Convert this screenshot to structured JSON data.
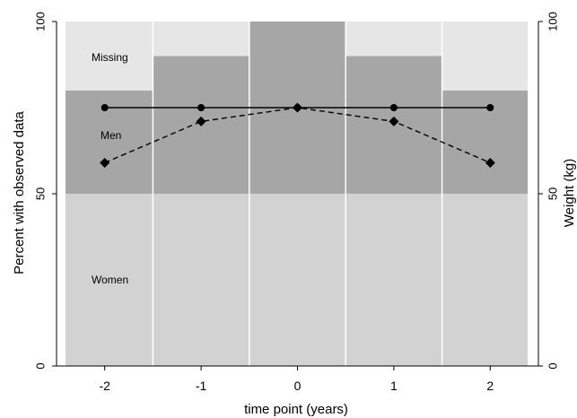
{
  "chart_data": {
    "type": "bar",
    "xlabel": "time point (years)",
    "ylabel_left": "Percent with observed data",
    "ylabel_right": "Weight (kg)",
    "x": [
      -2,
      -1,
      0,
      1,
      2
    ],
    "x_tick_labels": [
      "-2",
      "-1",
      "0",
      "1",
      "2"
    ],
    "xlim": [
      -2.5,
      2.5
    ],
    "ylim_left": [
      0,
      100
    ],
    "ylim_right": [
      0,
      100
    ],
    "y_ticks_left": [
      0,
      50,
      100
    ],
    "y_ticks_right": [
      0,
      50,
      100
    ],
    "y_tick_labels_left": [
      "0",
      "50",
      "100"
    ],
    "y_tick_labels_right": [
      "0",
      "50",
      "100"
    ],
    "stacked_bars": [
      {
        "name": "Women",
        "values": [
          50,
          50,
          50,
          50,
          50
        ],
        "color": "#d2d2d2"
      },
      {
        "name": "Men",
        "values": [
          30,
          40,
          50,
          40,
          30
        ],
        "color": "#a6a6a6"
      },
      {
        "name": "Missing",
        "values": [
          20,
          10,
          0,
          10,
          20
        ],
        "color": "#e6e6e6"
      }
    ],
    "bar_labels": {
      "missing": "Missing",
      "men": "Men",
      "women": "Women"
    },
    "lines": [
      {
        "style": "solid",
        "marker": "circle",
        "axis": "right",
        "values": [
          75,
          75,
          75,
          75,
          75
        ]
      },
      {
        "style": "dashed",
        "marker": "diamond",
        "axis": "right",
        "values": [
          59,
          71,
          75,
          71,
          59
        ]
      }
    ],
    "grid": false,
    "legend": "none"
  }
}
